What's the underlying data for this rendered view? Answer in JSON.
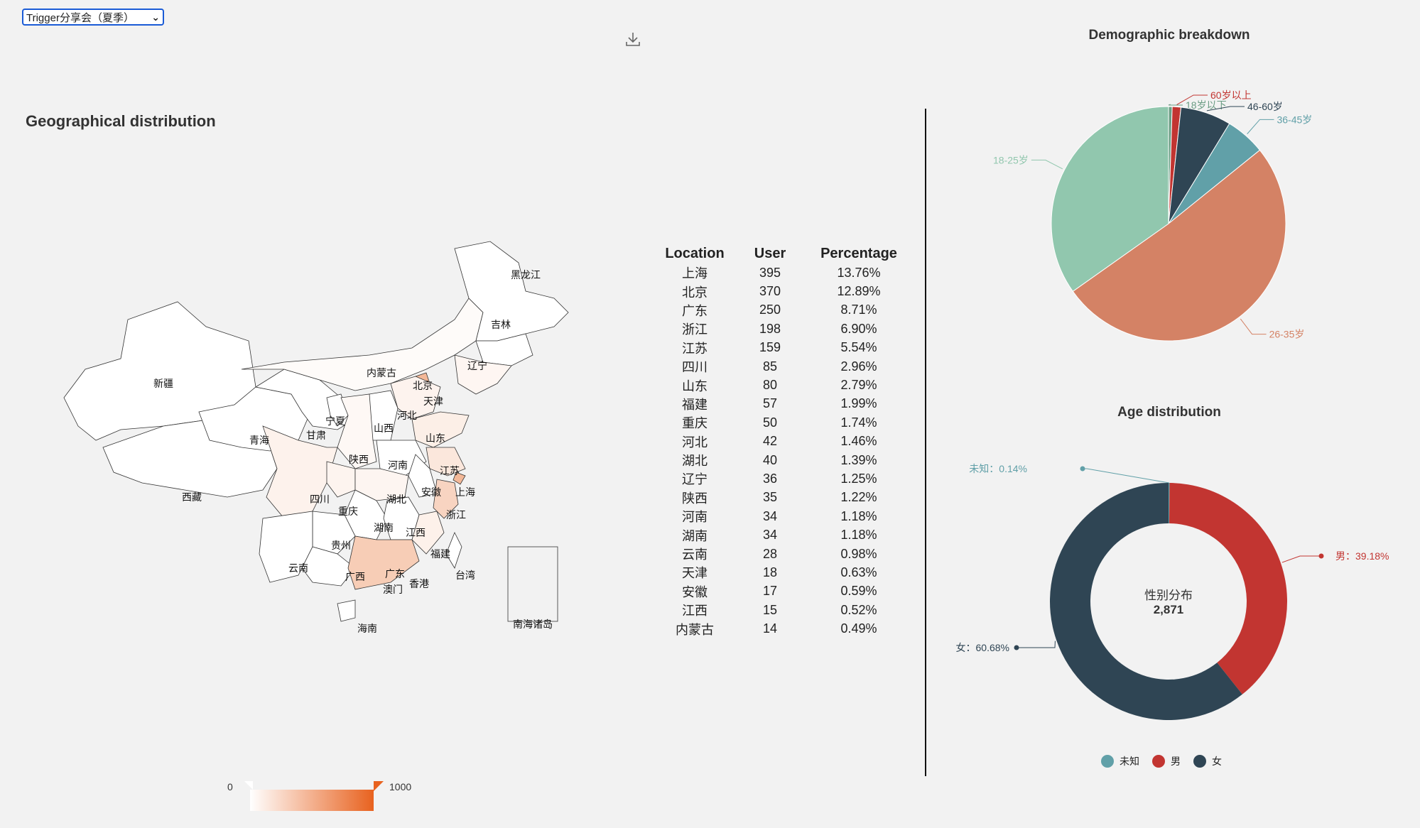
{
  "event_select": {
    "selected": "Trigger分享会（夏季）"
  },
  "geo_title": "Geographical distribution",
  "map": {
    "labels": [
      "新疆",
      "西藏",
      "青海",
      "甘肃",
      "宁夏",
      "内蒙古",
      "黑龙江",
      "吉林",
      "辽宁",
      "北京",
      "天津",
      "河北",
      "山西",
      "陕西",
      "山东",
      "河南",
      "江苏",
      "安徽",
      "上海",
      "四川",
      "重庆",
      "湖北",
      "浙江",
      "湖南",
      "江西",
      "贵州",
      "云南",
      "广西",
      "广东",
      "福建",
      "台湾",
      "澳门",
      "香港",
      "海南",
      "南海诸岛"
    ],
    "visual_map": {
      "min": 0,
      "max": 1000,
      "min_color": "#ffffff",
      "max_color": "#e8621f"
    }
  },
  "table": {
    "headers": [
      "Location",
      "User",
      "Percentage"
    ],
    "rows": [
      [
        "上海",
        "395",
        "13.76%"
      ],
      [
        "北京",
        "370",
        "12.89%"
      ],
      [
        "广东",
        "250",
        "8.71%"
      ],
      [
        "浙江",
        "198",
        "6.90%"
      ],
      [
        "江苏",
        "159",
        "5.54%"
      ],
      [
        "四川",
        "85",
        "2.96%"
      ],
      [
        "山东",
        "80",
        "2.79%"
      ],
      [
        "福建",
        "57",
        "1.99%"
      ],
      [
        "重庆",
        "50",
        "1.74%"
      ],
      [
        "河北",
        "42",
        "1.46%"
      ],
      [
        "湖北",
        "40",
        "1.39%"
      ],
      [
        "辽宁",
        "36",
        "1.25%"
      ],
      [
        "陕西",
        "35",
        "1.22%"
      ],
      [
        "河南",
        "34",
        "1.18%"
      ],
      [
        "湖南",
        "34",
        "1.18%"
      ],
      [
        "云南",
        "28",
        "0.98%"
      ],
      [
        "天津",
        "18",
        "0.63%"
      ],
      [
        "安徽",
        "17",
        "0.59%"
      ],
      [
        "江西",
        "15",
        "0.52%"
      ],
      [
        "内蒙古",
        "14",
        "0.49%"
      ]
    ]
  },
  "chart_data": [
    {
      "type": "pie",
      "title": "Demographic breakdown",
      "slices": [
        {
          "label": "18岁以下",
          "value": 0.5,
          "color": "#6b9d84"
        },
        {
          "label": "60岁以上",
          "value": 1.2,
          "color": "#c23531"
        },
        {
          "label": "46-60岁",
          "value": 7,
          "color": "#2f4554"
        },
        {
          "label": "36-45岁",
          "value": 5.5,
          "color": "#61a0a8"
        },
        {
          "label": "26-35岁",
          "value": 51,
          "color": "#d48265"
        },
        {
          "label": "18-25岁",
          "value": 34.8,
          "color": "#91c7ae"
        }
      ]
    },
    {
      "type": "pie",
      "subtype": "donut",
      "title": "Age distribution",
      "center_label": "性别分布",
      "center_value": "2,871",
      "slices": [
        {
          "label": "未知",
          "value": 0.14,
          "display": "未知：0.14%",
          "color": "#61a0a8"
        },
        {
          "label": "男",
          "value": 39.18,
          "display": "男：39.18%",
          "color": "#c23531"
        },
        {
          "label": "女",
          "value": 60.68,
          "display": "女：60.68%",
          "color": "#2f4554"
        }
      ],
      "legend": [
        "未知",
        "男",
        "女"
      ],
      "legend_position": "bottom"
    }
  ]
}
